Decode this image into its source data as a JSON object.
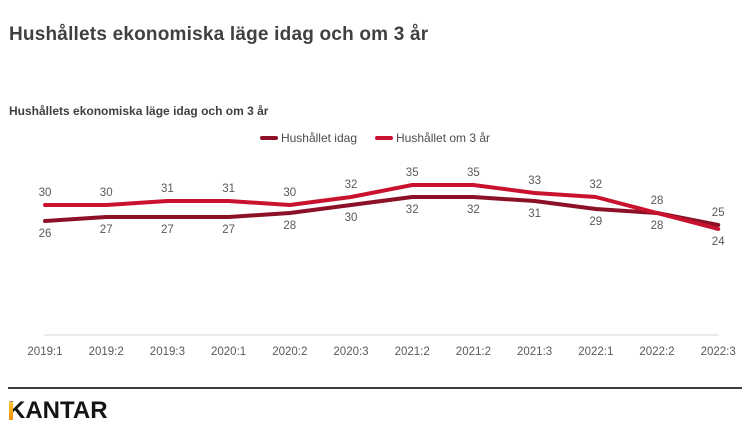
{
  "page": {
    "title": "Hushållets ekonomiska läge idag och om 3 år",
    "chart_heading": "Hushållets ekonomiska läge idag och om 3 år"
  },
  "legend": [
    {
      "label": "Hushållet idag",
      "color": "#8c1127"
    },
    {
      "label": "Hushållet om 3 år",
      "color": "#c9132e"
    }
  ],
  "footer": {
    "brand": "KANTAR",
    "k_gradient_top": "#fdc536",
    "k_gradient_bottom": "#f29100"
  },
  "chart_data": {
    "type": "line",
    "title": "Hushållets ekonomiska läge idag och om 3 år",
    "categories": [
      "2019:1",
      "2019:2",
      "2019:3",
      "2020:1",
      "2020:2",
      "2020:3",
      "2021:2",
      "2021:2",
      "2021:3",
      "2022:1",
      "2022:2",
      "2022:3"
    ],
    "series": [
      {
        "name": "Hushållet idag",
        "color": "#8c1127",
        "values": [
          26,
          27,
          27,
          27,
          28,
          30,
          32,
          32,
          31,
          29,
          28,
          25
        ],
        "label_position": "below",
        "last_label_position": "above"
      },
      {
        "name": "Hushållet om 3 år",
        "color": "#c9132e",
        "values": [
          30,
          30,
          31,
          31,
          30,
          32,
          35,
          35,
          33,
          32,
          28,
          24
        ],
        "label_position": "above",
        "last_label_position": "below"
      }
    ],
    "ylim": [
      20,
      40
    ],
    "grid": false,
    "y_axis_visible": false,
    "data_labels": true,
    "legend_position": "top-center",
    "axis_line_color": "#d6d6d6",
    "label_color": "#595959"
  }
}
